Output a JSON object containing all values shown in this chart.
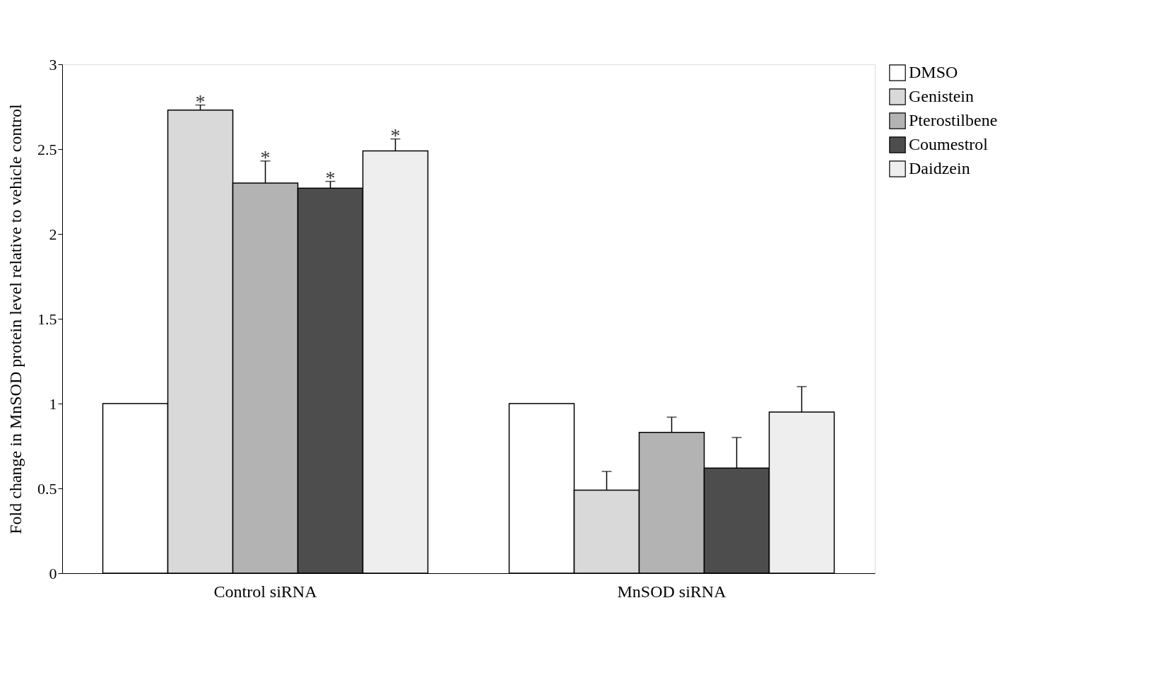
{
  "chart_data": {
    "type": "bar",
    "ylabel": "Fold change in MnSOD protein level relative to vehicle control",
    "categories": [
      "Control siRNA",
      "MnSOD siRNA"
    ],
    "series": [
      {
        "name": "DMSO",
        "color": "#ffffff",
        "values": [
          1.0,
          1.0
        ]
      },
      {
        "name": "Genistein",
        "color": "#d9d9d9",
        "values": [
          2.73,
          0.49
        ],
        "errors": [
          [
            2.73,
            2.76
          ],
          [
            0.49,
            0.6
          ]
        ],
        "value_labels": [
          "*",
          null
        ]
      },
      {
        "name": "Pterostilbene",
        "color": "#b3b3b3",
        "values": [
          2.3,
          0.83
        ],
        "errors": [
          [
            2.3,
            2.43
          ],
          [
            0.83,
            0.92
          ]
        ],
        "value_labels": [
          "*",
          null
        ]
      },
      {
        "name": "Coumestrol",
        "color": "#4d4d4d",
        "values": [
          2.27,
          0.62
        ],
        "errors": [
          [
            2.27,
            2.31
          ],
          [
            0.62,
            0.8
          ]
        ],
        "value_labels": [
          "*",
          null
        ]
      },
      {
        "name": "Daidzein",
        "color": "#eeeeee",
        "values": [
          2.49,
          0.95
        ],
        "errors": [
          [
            2.49,
            2.56
          ],
          [
            0.95,
            1.1
          ]
        ],
        "value_labels": [
          "*",
          null
        ]
      }
    ],
    "ylim": [
      0,
      3
    ],
    "yticks": [
      0,
      0.5,
      1,
      1.5,
      2,
      2.5,
      3
    ],
    "grid": false,
    "legend": "right"
  }
}
